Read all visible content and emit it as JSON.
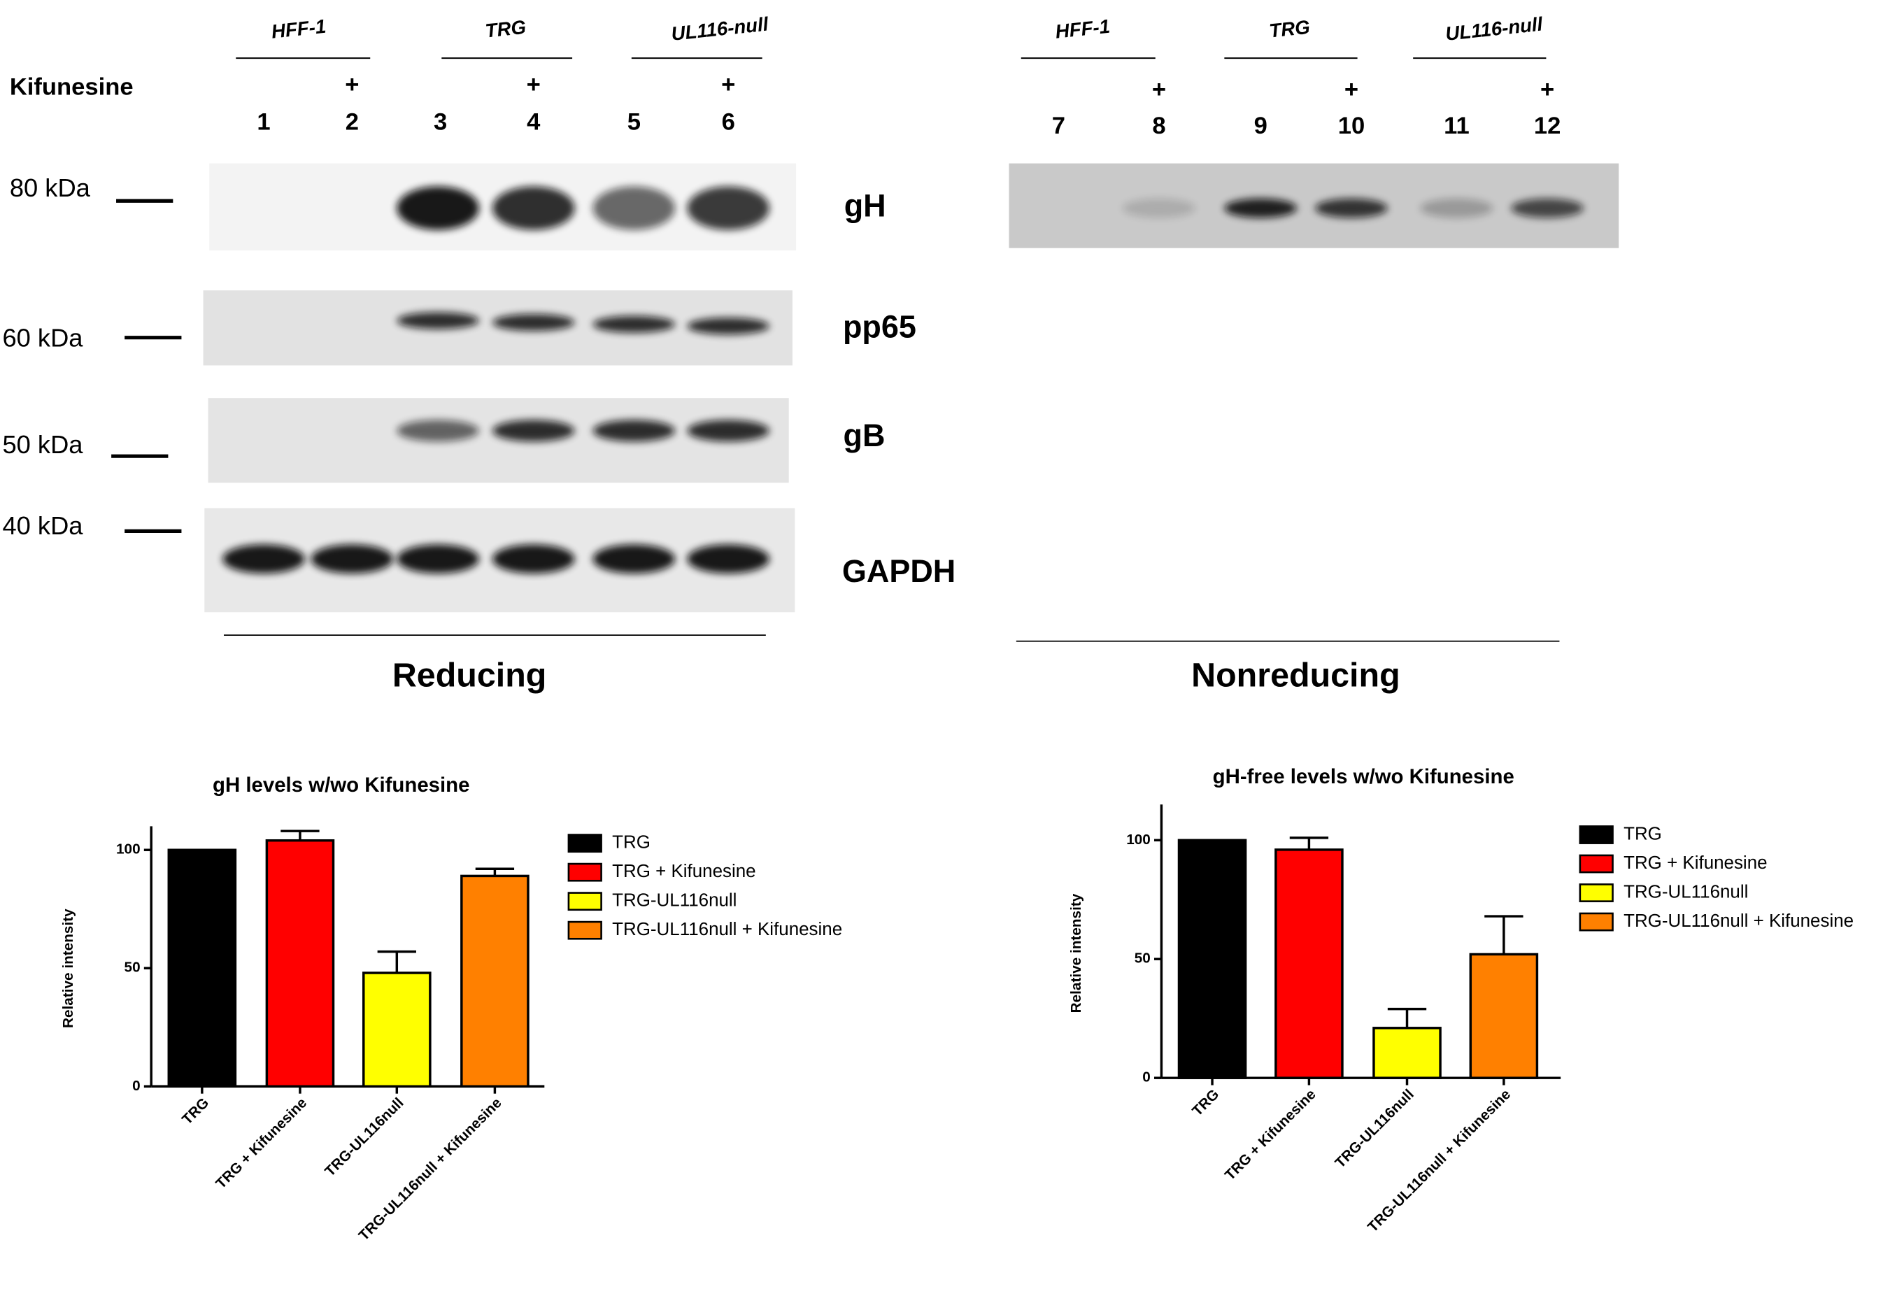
{
  "blots": {
    "reducing": {
      "treatment_label": "Kifunesine",
      "groups": [
        "HFF-1",
        "TRG",
        "UL116-null"
      ],
      "plus": [
        "+",
        "+",
        "+"
      ],
      "lanes": [
        "1",
        "2",
        "3",
        "4",
        "5",
        "6"
      ],
      "markers": [
        "80 kDa",
        "60 kDa",
        "50 kDa",
        "40 kDa"
      ],
      "bands": [
        "gH",
        "pp65",
        "gB",
        "GAPDH"
      ],
      "condition": "Reducing"
    },
    "nonreducing": {
      "groups": [
        "HFF-1",
        "TRG",
        "UL116-null"
      ],
      "plus": [
        "+",
        "+",
        "+"
      ],
      "lanes": [
        "7",
        "8",
        "9",
        "10",
        "11",
        "12"
      ],
      "condition": "Nonreducing"
    }
  },
  "chart_data": [
    {
      "type": "bar",
      "title": "gH levels w/wo Kifunesine",
      "y_label": "Relative intensity",
      "categories": [
        "TRG",
        "TRG + Kifunesine",
        "TRG-UL116null",
        "TRG-UL116null + Kifunesine"
      ],
      "values": [
        100,
        104,
        48,
        89
      ],
      "errors": [
        0,
        4,
        9,
        3
      ],
      "colors": [
        "#000000",
        "#ff0000",
        "#ffff00",
        "#ff8000"
      ],
      "legend": [
        "TRG",
        "TRG + Kifunesine",
        "TRG-UL116null",
        "TRG-UL116null + Kifunesine"
      ],
      "ylim": [
        0,
        110
      ],
      "yticks": [
        0,
        50,
        100
      ]
    },
    {
      "type": "bar",
      "title": "gH-free levels w/wo Kifunesine",
      "y_label": "Relative intensity",
      "categories": [
        "TRG",
        "TRG + Kifunesine",
        "TRG-UL116null",
        "TRG-UL116null + Kifunesine"
      ],
      "values": [
        100,
        96,
        21,
        52
      ],
      "errors": [
        0,
        5,
        8,
        16
      ],
      "colors": [
        "#000000",
        "#ff0000",
        "#ffff00",
        "#ff8000"
      ],
      "legend": [
        "TRG",
        "TRG + Kifunesine",
        "TRG-UL116null",
        "TRG-UL116null + Kifunesine"
      ],
      "ylim": [
        0,
        115
      ],
      "yticks": [
        0,
        50,
        100
      ]
    }
  ]
}
